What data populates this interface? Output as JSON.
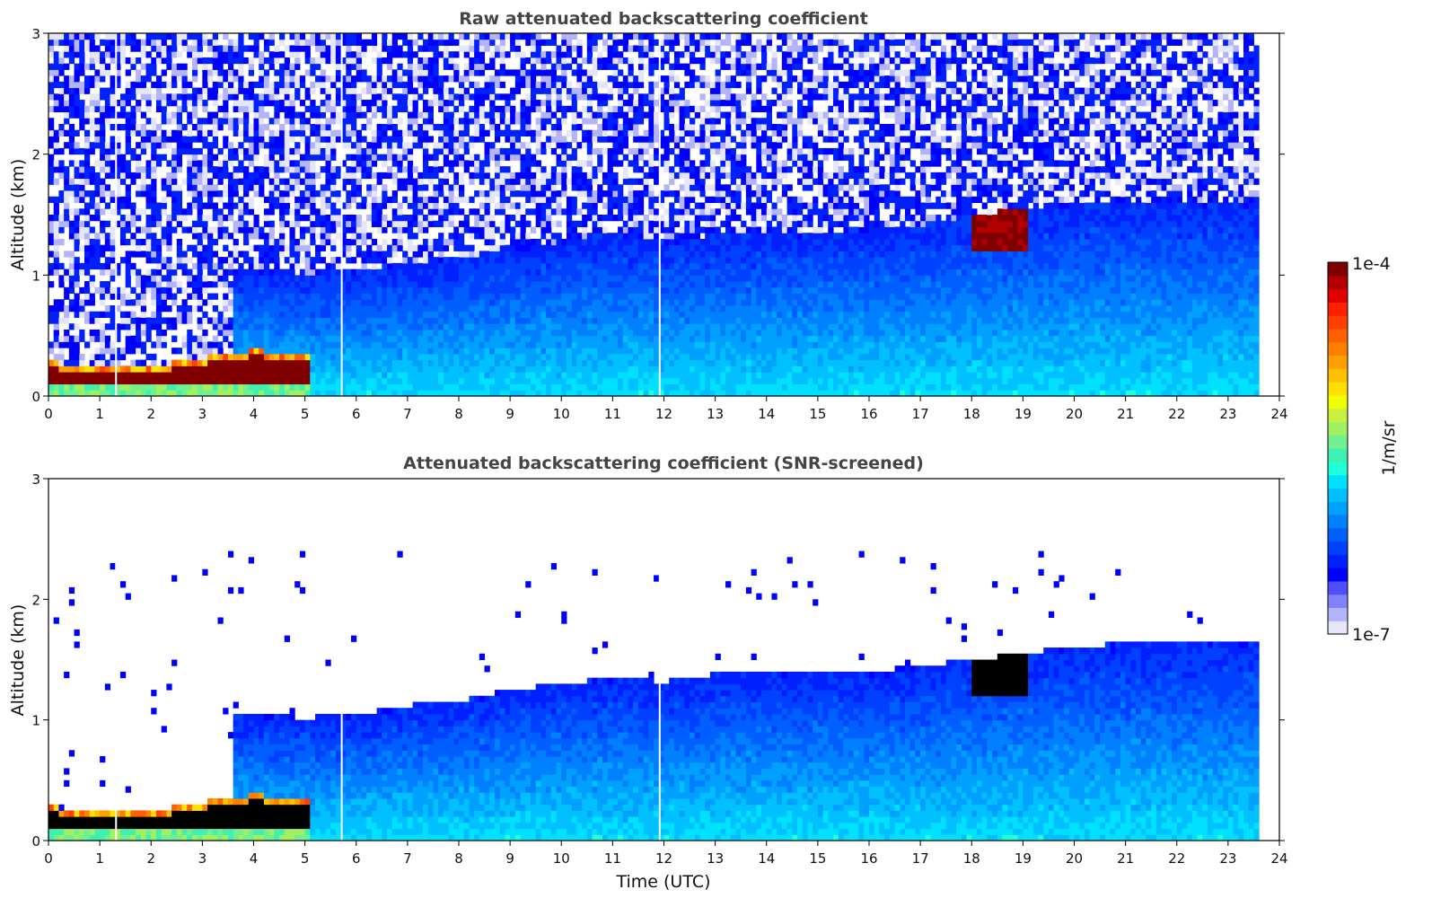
{
  "chart_data": [
    {
      "type": "heatmap",
      "title": "Raw attenuated backscattering coefficient",
      "xlabel": "",
      "ylabel": "Altitude (km)",
      "xlim": [
        0,
        24
      ],
      "ylim": [
        0,
        3
      ],
      "xticks": [
        "0",
        "1",
        "2",
        "3",
        "4",
        "5",
        "6",
        "7",
        "8",
        "9",
        "10",
        "11",
        "12",
        "13",
        "14",
        "15",
        "16",
        "17",
        "18",
        "19",
        "20",
        "21",
        "22",
        "23",
        "24"
      ],
      "yticks": [
        "0",
        "1",
        "2",
        "3"
      ],
      "data_extent_hours": 23.55,
      "screened": false,
      "features": {
        "surface_layer_top_km": [
          [
            0,
            0.28
          ],
          [
            1,
            0.25
          ],
          [
            2,
            0.25
          ],
          [
            3,
            0.32
          ],
          [
            4,
            0.38
          ],
          [
            5,
            0.35
          ]
        ],
        "boundary_layer_top_km": [
          [
            3.6,
            1.05
          ],
          [
            5,
            1.02
          ],
          [
            6,
            1.05
          ],
          [
            8,
            1.15
          ],
          [
            10,
            1.28
          ],
          [
            11,
            1.35
          ],
          [
            12,
            1.3
          ],
          [
            14,
            1.36
          ],
          [
            16,
            1.38
          ],
          [
            17,
            1.42
          ],
          [
            18,
            1.5
          ],
          [
            19,
            1.55
          ],
          [
            20,
            1.6
          ],
          [
            23.5,
            1.62
          ]
        ],
        "cloud_layer": {
          "start_h": 17.95,
          "end_h": 19.1,
          "base_km": 1.2,
          "top_km": 1.55
        },
        "data_gaps_h": [
          1.3,
          5.7,
          11.9
        ]
      }
    },
    {
      "type": "heatmap",
      "title": "Attenuated backscattering coefficient (SNR-screened)",
      "xlabel": "Time (UTC)",
      "ylabel": "Altitude (km)",
      "xlim": [
        0,
        24
      ],
      "ylim": [
        0,
        3
      ],
      "xticks": [
        "0",
        "1",
        "2",
        "3",
        "4",
        "5",
        "6",
        "7",
        "8",
        "9",
        "10",
        "11",
        "12",
        "13",
        "14",
        "15",
        "16",
        "17",
        "18",
        "19",
        "20",
        "21",
        "22",
        "23",
        "24"
      ],
      "yticks": [
        "0",
        "1",
        "2",
        "3"
      ],
      "data_extent_hours": 23.55,
      "screened": true,
      "features": {
        "surface_layer_top_km": [
          [
            0,
            0.28
          ],
          [
            1,
            0.25
          ],
          [
            2,
            0.25
          ],
          [
            3,
            0.32
          ],
          [
            4,
            0.38
          ],
          [
            5,
            0.35
          ]
        ],
        "boundary_layer_top_km": [
          [
            3.6,
            1.05
          ],
          [
            5,
            1.02
          ],
          [
            6,
            1.05
          ],
          [
            7,
            1.12
          ],
          [
            8,
            1.16
          ],
          [
            9,
            1.25
          ],
          [
            10,
            1.3
          ],
          [
            11,
            1.35
          ],
          [
            12,
            1.32
          ],
          [
            13,
            1.38
          ],
          [
            14,
            1.4
          ],
          [
            16,
            1.4
          ],
          [
            17,
            1.45
          ],
          [
            18,
            1.5
          ],
          [
            19,
            1.55
          ],
          [
            20,
            1.62
          ],
          [
            23.5,
            1.65
          ]
        ],
        "cloud_layer": {
          "start_h": 17.95,
          "end_h": 19.1,
          "base_km": 1.2,
          "top_km": 1.55
        },
        "data_gaps_h": [
          1.3,
          5.7,
          11.9
        ]
      }
    }
  ],
  "colorbar": {
    "label": "1/m/sr",
    "max_label": "1e-4",
    "min_label": "1e-7",
    "scale": "log",
    "range": [
      1e-07,
      0.0001
    ],
    "colors": [
      "#e6e6fa",
      "#b4b4fa",
      "#8282fa",
      "#5050fa",
      "#0000ff",
      "#0020ff",
      "#0040ff",
      "#0060ff",
      "#0080ff",
      "#00a0ff",
      "#00c0ff",
      "#00e0ff",
      "#20ffd8",
      "#40f0b0",
      "#70f090",
      "#a0f060",
      "#c8f040",
      "#f0ff00",
      "#ffe000",
      "#ffc000",
      "#ffa000",
      "#ff8000",
      "#ff6000",
      "#ff4000",
      "#ff2000",
      "#e00000",
      "#b00000",
      "#800000"
    ]
  }
}
